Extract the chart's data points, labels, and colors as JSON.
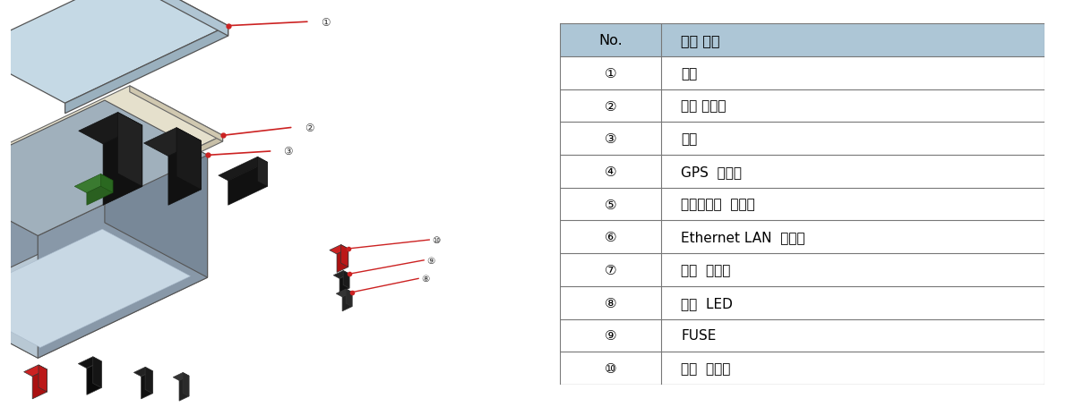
{
  "table_header": [
    "No.",
    "세부 항목"
  ],
  "table_rows": [
    [
      "①",
      "덮개"
    ],
    [
      "②",
      "중판 조립체"
    ],
    [
      "③",
      "몸체"
    ],
    [
      "④",
      "GPS  커넥터"
    ],
    [
      "⑤",
      "하이드로폰  커넥터"
    ],
    [
      "⑥",
      "Ethernet LAN  커넥터"
    ],
    [
      "⑦",
      "전원  커넥터"
    ],
    [
      "⑧",
      "전원  LED"
    ],
    [
      "⑨",
      "FUSE"
    ],
    [
      "⑩",
      "전원  스위치"
    ]
  ],
  "header_bg": "#adc6d6",
  "border_color": "#777777",
  "text_color": "#000000",
  "header_fontsize": 11.5,
  "row_fontsize": 11,
  "bold_rows_idx": [
    3,
    5,
    8
  ],
  "fig_bg": "#ffffff",
  "red_color": "#cc2222",
  "arrow_color": "#cc2222"
}
